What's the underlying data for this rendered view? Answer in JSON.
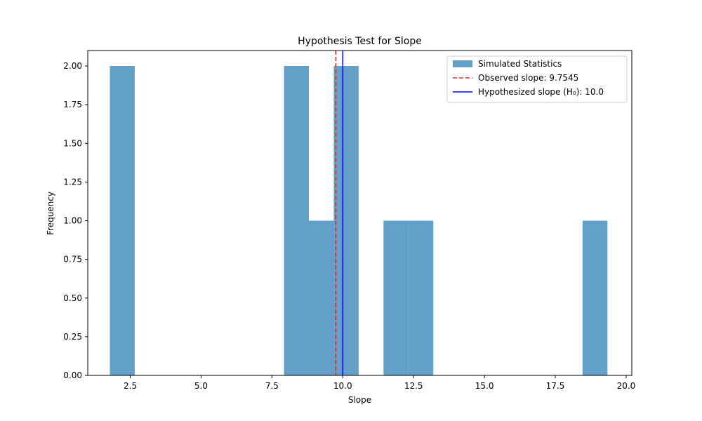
{
  "chart_data": {
    "type": "bar",
    "title": "Hypothesis Test for Slope",
    "xlabel": "Slope",
    "ylabel": "Frequency",
    "xlim": [
      1.0,
      20.2
    ],
    "ylim": [
      0.0,
      2.1
    ],
    "xticks": [
      2.5,
      5.0,
      7.5,
      10.0,
      12.5,
      15.0,
      17.5,
      20.0
    ],
    "xtick_labels": [
      "2.5",
      "5.0",
      "7.5",
      "10.0",
      "12.5",
      "15.0",
      "17.5",
      "20.0"
    ],
    "yticks": [
      0.0,
      0.25,
      0.5,
      0.75,
      1.0,
      1.25,
      1.5,
      1.75,
      2.0
    ],
    "ytick_labels": [
      "0.00",
      "0.25",
      "0.50",
      "0.75",
      "1.00",
      "1.25",
      "1.50",
      "1.75",
      "2.00"
    ],
    "bin_start": 1.78,
    "bin_width": 0.878,
    "counts": [
      2,
      0,
      0,
      0,
      0,
      0,
      0,
      2,
      1,
      2,
      0,
      1,
      1,
      0,
      0,
      0,
      0,
      0,
      0,
      1
    ],
    "bar_color": "#1f77b4",
    "bar_alpha": 0.7,
    "observed_slope": 9.7545,
    "hypothesized_slope": 10.0,
    "observed_color": "#d62728",
    "hypothesized_color": "#0000ff",
    "legend": {
      "placement": "top-right",
      "entries": [
        {
          "label": "Simulated Statistics",
          "kind": "patch"
        },
        {
          "label": "Observed slope: 9.7545",
          "kind": "dashed-line"
        },
        {
          "label": "Hypothesized slope (H₀): 10.0",
          "kind": "solid-line"
        }
      ]
    }
  }
}
